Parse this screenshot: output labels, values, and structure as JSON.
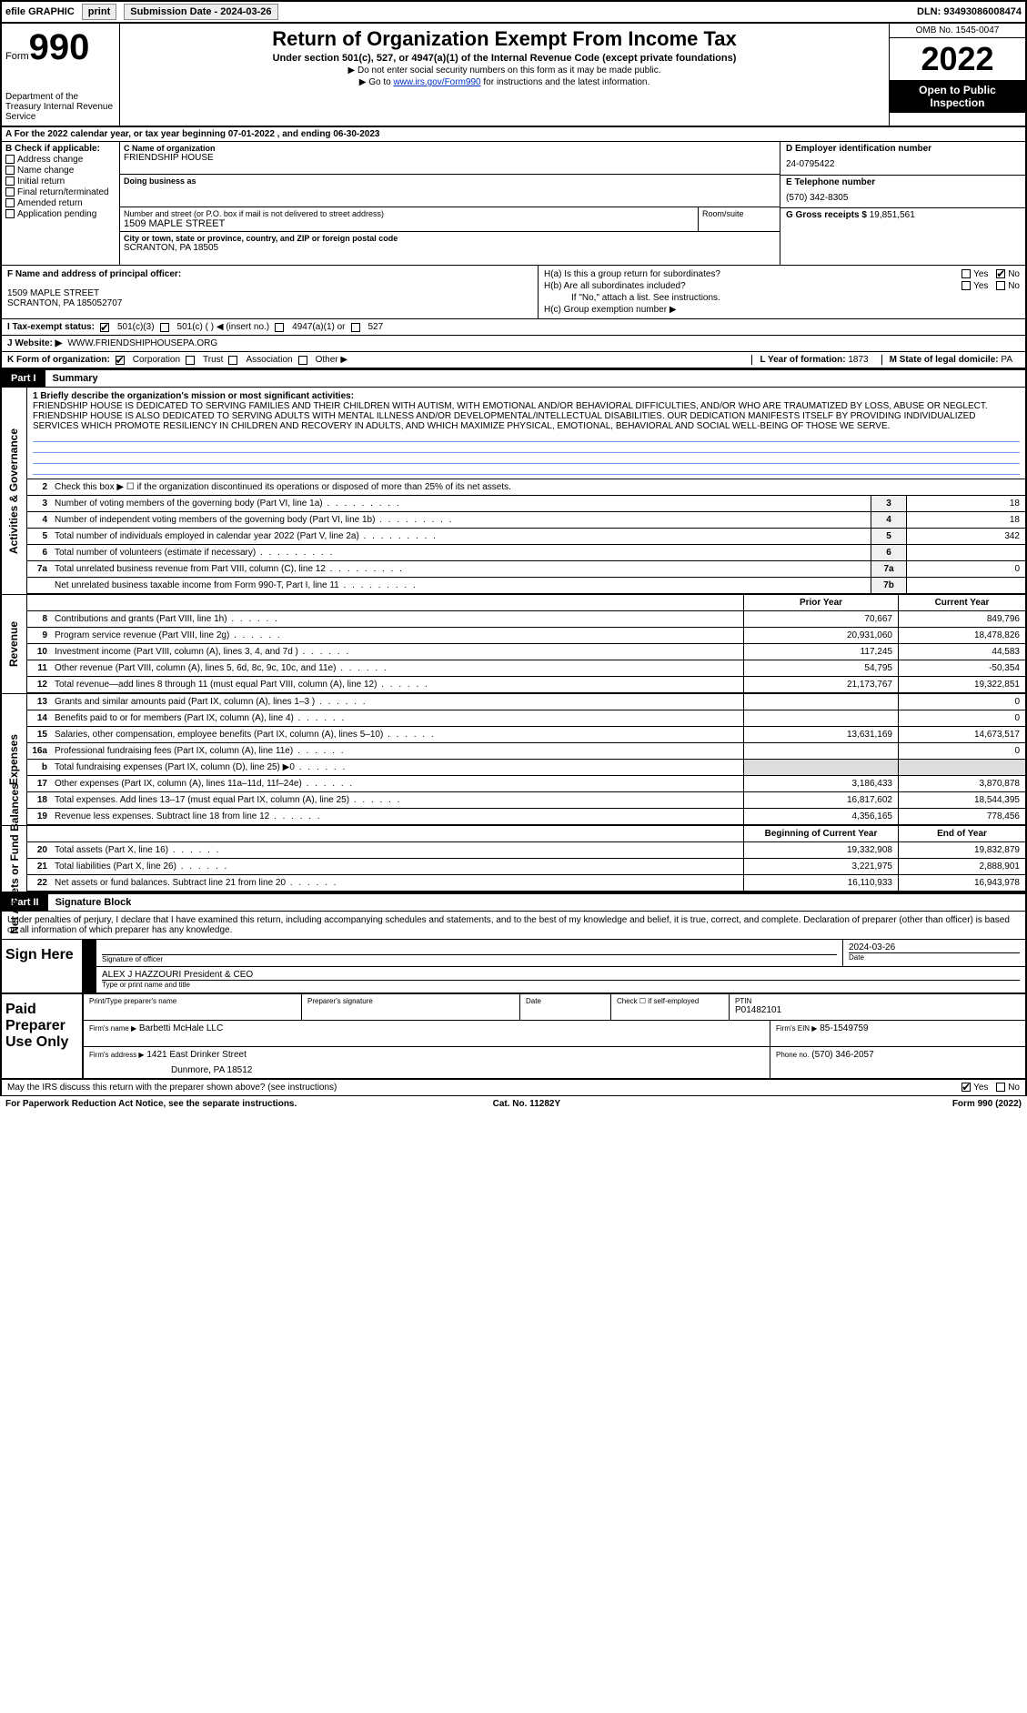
{
  "top": {
    "efile": "efile GRAPHIC",
    "print": "print",
    "sub_label": "Submission Date - 2024-03-26",
    "dln": "DLN: 93493086008474"
  },
  "header": {
    "form_word": "Form",
    "form_num": "990",
    "dept": "Department of the Treasury Internal Revenue Service",
    "title": "Return of Organization Exempt From Income Tax",
    "sub": "Under section 501(c), 527, or 4947(a)(1) of the Internal Revenue Code (except private foundations)",
    "note1": "▶ Do not enter social security numbers on this form as it may be made public.",
    "note2_pre": "▶ Go to ",
    "note2_link": "www.irs.gov/Form990",
    "note2_post": " for instructions and the latest information.",
    "omb": "OMB No. 1545-0047",
    "year": "2022",
    "open": "Open to Public Inspection"
  },
  "a_row": "A For the 2022 calendar year, or tax year beginning 07-01-2022   , and ending 06-30-2023",
  "b": {
    "hdr": "B Check if applicable:",
    "items": [
      "Address change",
      "Name change",
      "Initial return",
      "Final return/terminated",
      "Amended return",
      "Application pending"
    ]
  },
  "c": {
    "name_lbl": "C Name of organization",
    "name": "FRIENDSHIP HOUSE",
    "dba_lbl": "Doing business as",
    "dba": "",
    "addr_lbl": "Number and street (or P.O. box if mail is not delivered to street address)",
    "addr": "1509 MAPLE STREET",
    "room_lbl": "Room/suite",
    "city_lbl": "City or town, state or province, country, and ZIP or foreign postal code",
    "city": "SCRANTON, PA   18505"
  },
  "d": {
    "ein_lbl": "D Employer identification number",
    "ein": "24-0795422",
    "tel_lbl": "E Telephone number",
    "tel": "(570) 342-8305",
    "gross_lbl": "G Gross receipts $",
    "gross": "19,851,561"
  },
  "f": {
    "lbl": "F  Name and address of principal officer:",
    "line1": "1509 MAPLE STREET",
    "line2": "SCRANTON, PA  185052707"
  },
  "h": {
    "a": "H(a)  Is this a group return for subordinates?",
    "b": "H(b)  Are all subordinates included?",
    "note": "If \"No,\" attach a list. See instructions.",
    "c": "H(c)  Group exemption number ▶"
  },
  "i": {
    "lbl": "I   Tax-exempt status:",
    "o1": "501(c)(3)",
    "o2": "501(c) (  ) ◀ (insert no.)",
    "o3": "4947(a)(1) or",
    "o4": "527"
  },
  "j": {
    "lbl": "J   Website: ▶",
    "val": "WWW.FRIENDSHIPHOUSEPA.ORG"
  },
  "k": {
    "lbl": "K Form of organization:",
    "o1": "Corporation",
    "o2": "Trust",
    "o3": "Association",
    "o4": "Other ▶"
  },
  "l": {
    "lbl": "L Year of formation:",
    "val": "1873"
  },
  "m": {
    "lbl": "M State of legal domicile:",
    "val": "PA"
  },
  "part1": {
    "tag": "Part I",
    "title": "Summary"
  },
  "mission": {
    "lead": "1   Briefly describe the organization's mission or most significant activities:",
    "text": "FRIENDSHIP HOUSE IS DEDICATED TO SERVING FAMILIES AND THEIR CHILDREN WITH AUTISM, WITH EMOTIONAL AND/OR BEHAVIORAL DIFFICULTIES, AND/OR WHO ARE TRAUMATIZED BY LOSS, ABUSE OR NEGLECT. FRIENDSHIP HOUSE IS ALSO DEDICATED TO SERVING ADULTS WITH MENTAL ILLNESS AND/OR DEVELOPMENTAL/INTELLECTUAL DISABILITIES. OUR DEDICATION MANIFESTS ITSELF BY PROVIDING INDIVIDUALIZED SERVICES WHICH PROMOTE RESILIENCY IN CHILDREN AND RECOVERY IN ADULTS, AND WHICH MAXIMIZE PHYSICAL, EMOTIONAL, BEHAVIORAL AND SOCIAL WELL-BEING OF THOSE WE SERVE."
  },
  "gov": {
    "l2": "Check this box ▶ ☐ if the organization discontinued its operations or disposed of more than 25% of its net assets.",
    "rows": [
      {
        "n": "3",
        "d": "Number of voting members of the governing body (Part VI, line 1a)",
        "box": "3",
        "v": "18"
      },
      {
        "n": "4",
        "d": "Number of independent voting members of the governing body (Part VI, line 1b)",
        "box": "4",
        "v": "18"
      },
      {
        "n": "5",
        "d": "Total number of individuals employed in calendar year 2022 (Part V, line 2a)",
        "box": "5",
        "v": "342"
      },
      {
        "n": "6",
        "d": "Total number of volunteers (estimate if necessary)",
        "box": "6",
        "v": ""
      },
      {
        "n": "7a",
        "d": "Total unrelated business revenue from Part VIII, column (C), line 12",
        "box": "7a",
        "v": "0"
      },
      {
        "n": "",
        "d": "Net unrelated business taxable income from Form 990-T, Part I, line 11",
        "box": "7b",
        "v": ""
      }
    ]
  },
  "fin": {
    "h1": "Prior Year",
    "h2": "Current Year",
    "rev": [
      {
        "n": "8",
        "d": "Contributions and grants (Part VIII, line 1h)",
        "c1": "70,667",
        "c2": "849,796"
      },
      {
        "n": "9",
        "d": "Program service revenue (Part VIII, line 2g)",
        "c1": "20,931,060",
        "c2": "18,478,826"
      },
      {
        "n": "10",
        "d": "Investment income (Part VIII, column (A), lines 3, 4, and 7d )",
        "c1": "117,245",
        "c2": "44,583"
      },
      {
        "n": "11",
        "d": "Other revenue (Part VIII, column (A), lines 5, 6d, 8c, 9c, 10c, and 11e)",
        "c1": "54,795",
        "c2": "-50,354"
      },
      {
        "n": "12",
        "d": "Total revenue—add lines 8 through 11 (must equal Part VIII, column (A), line 12)",
        "c1": "21,173,767",
        "c2": "19,322,851"
      }
    ],
    "exp": [
      {
        "n": "13",
        "d": "Grants and similar amounts paid (Part IX, column (A), lines 1–3 )",
        "c1": "",
        "c2": "0"
      },
      {
        "n": "14",
        "d": "Benefits paid to or for members (Part IX, column (A), line 4)",
        "c1": "",
        "c2": "0"
      },
      {
        "n": "15",
        "d": "Salaries, other compensation, employee benefits (Part IX, column (A), lines 5–10)",
        "c1": "13,631,169",
        "c2": "14,673,517"
      },
      {
        "n": "16a",
        "d": "Professional fundraising fees (Part IX, column (A), line 11e)",
        "c1": "",
        "c2": "0"
      },
      {
        "n": "b",
        "d": "Total fundraising expenses (Part IX, column (D), line 25) ▶0",
        "c1": "shaded",
        "c2": "shaded"
      },
      {
        "n": "17",
        "d": "Other expenses (Part IX, column (A), lines 11a–11d, 11f–24e)",
        "c1": "3,186,433",
        "c2": "3,870,878"
      },
      {
        "n": "18",
        "d": "Total expenses. Add lines 13–17 (must equal Part IX, column (A), line 25)",
        "c1": "16,817,602",
        "c2": "18,544,395"
      },
      {
        "n": "19",
        "d": "Revenue less expenses. Subtract line 18 from line 12",
        "c1": "4,356,165",
        "c2": "778,456"
      }
    ],
    "bal_h1": "Beginning of Current Year",
    "bal_h2": "End of Year",
    "bal": [
      {
        "n": "20",
        "d": "Total assets (Part X, line 16)",
        "c1": "19,332,908",
        "c2": "19,832,879"
      },
      {
        "n": "21",
        "d": "Total liabilities (Part X, line 26)",
        "c1": "3,221,975",
        "c2": "2,888,901"
      },
      {
        "n": "22",
        "d": "Net assets or fund balances. Subtract line 21 from line 20",
        "c1": "16,110,933",
        "c2": "16,943,978"
      }
    ]
  },
  "side": {
    "gov": "Activities & Governance",
    "rev": "Revenue",
    "exp": "Expenses",
    "bal": "Net Assets or Fund Balances"
  },
  "part2": {
    "tag": "Part II",
    "title": "Signature Block"
  },
  "sig": {
    "decl": "Under penalties of perjury, I declare that I have examined this return, including accompanying schedules and statements, and to the best of my knowledge and belief, it is true, correct, and complete. Declaration of preparer (other than officer) is based on all information of which preparer has any knowledge.",
    "sign_here": "Sign Here",
    "sig_officer": "Signature of officer",
    "date": "2024-03-26",
    "date_lbl": "Date",
    "name_title": "ALEX J HAZZOURI President & CEO",
    "name_lbl": "Type or print name and title",
    "paid": "Paid Preparer Use Only",
    "prep_name_lbl": "Print/Type preparer's name",
    "prep_sig_lbl": "Preparer's signature",
    "prep_date_lbl": "Date",
    "check_self": "Check ☐ if self-employed",
    "ptin_lbl": "PTIN",
    "ptin": "P01482101",
    "firm_name_lbl": "Firm's name    ▶",
    "firm_name": "Barbetti McHale LLC",
    "firm_ein_lbl": "Firm's EIN ▶",
    "firm_ein": "85-1549759",
    "firm_addr_lbl": "Firm's address ▶",
    "firm_addr1": "1421 East Drinker Street",
    "firm_addr2": "Dunmore, PA  18512",
    "phone_lbl": "Phone no.",
    "phone": "(570) 346-2057"
  },
  "footer": {
    "discuss": "May the IRS discuss this return with the preparer shown above? (see instructions)",
    "paperwork": "For Paperwork Reduction Act Notice, see the separate instructions.",
    "cat": "Cat. No. 11282Y",
    "form": "Form 990 (2022)"
  }
}
